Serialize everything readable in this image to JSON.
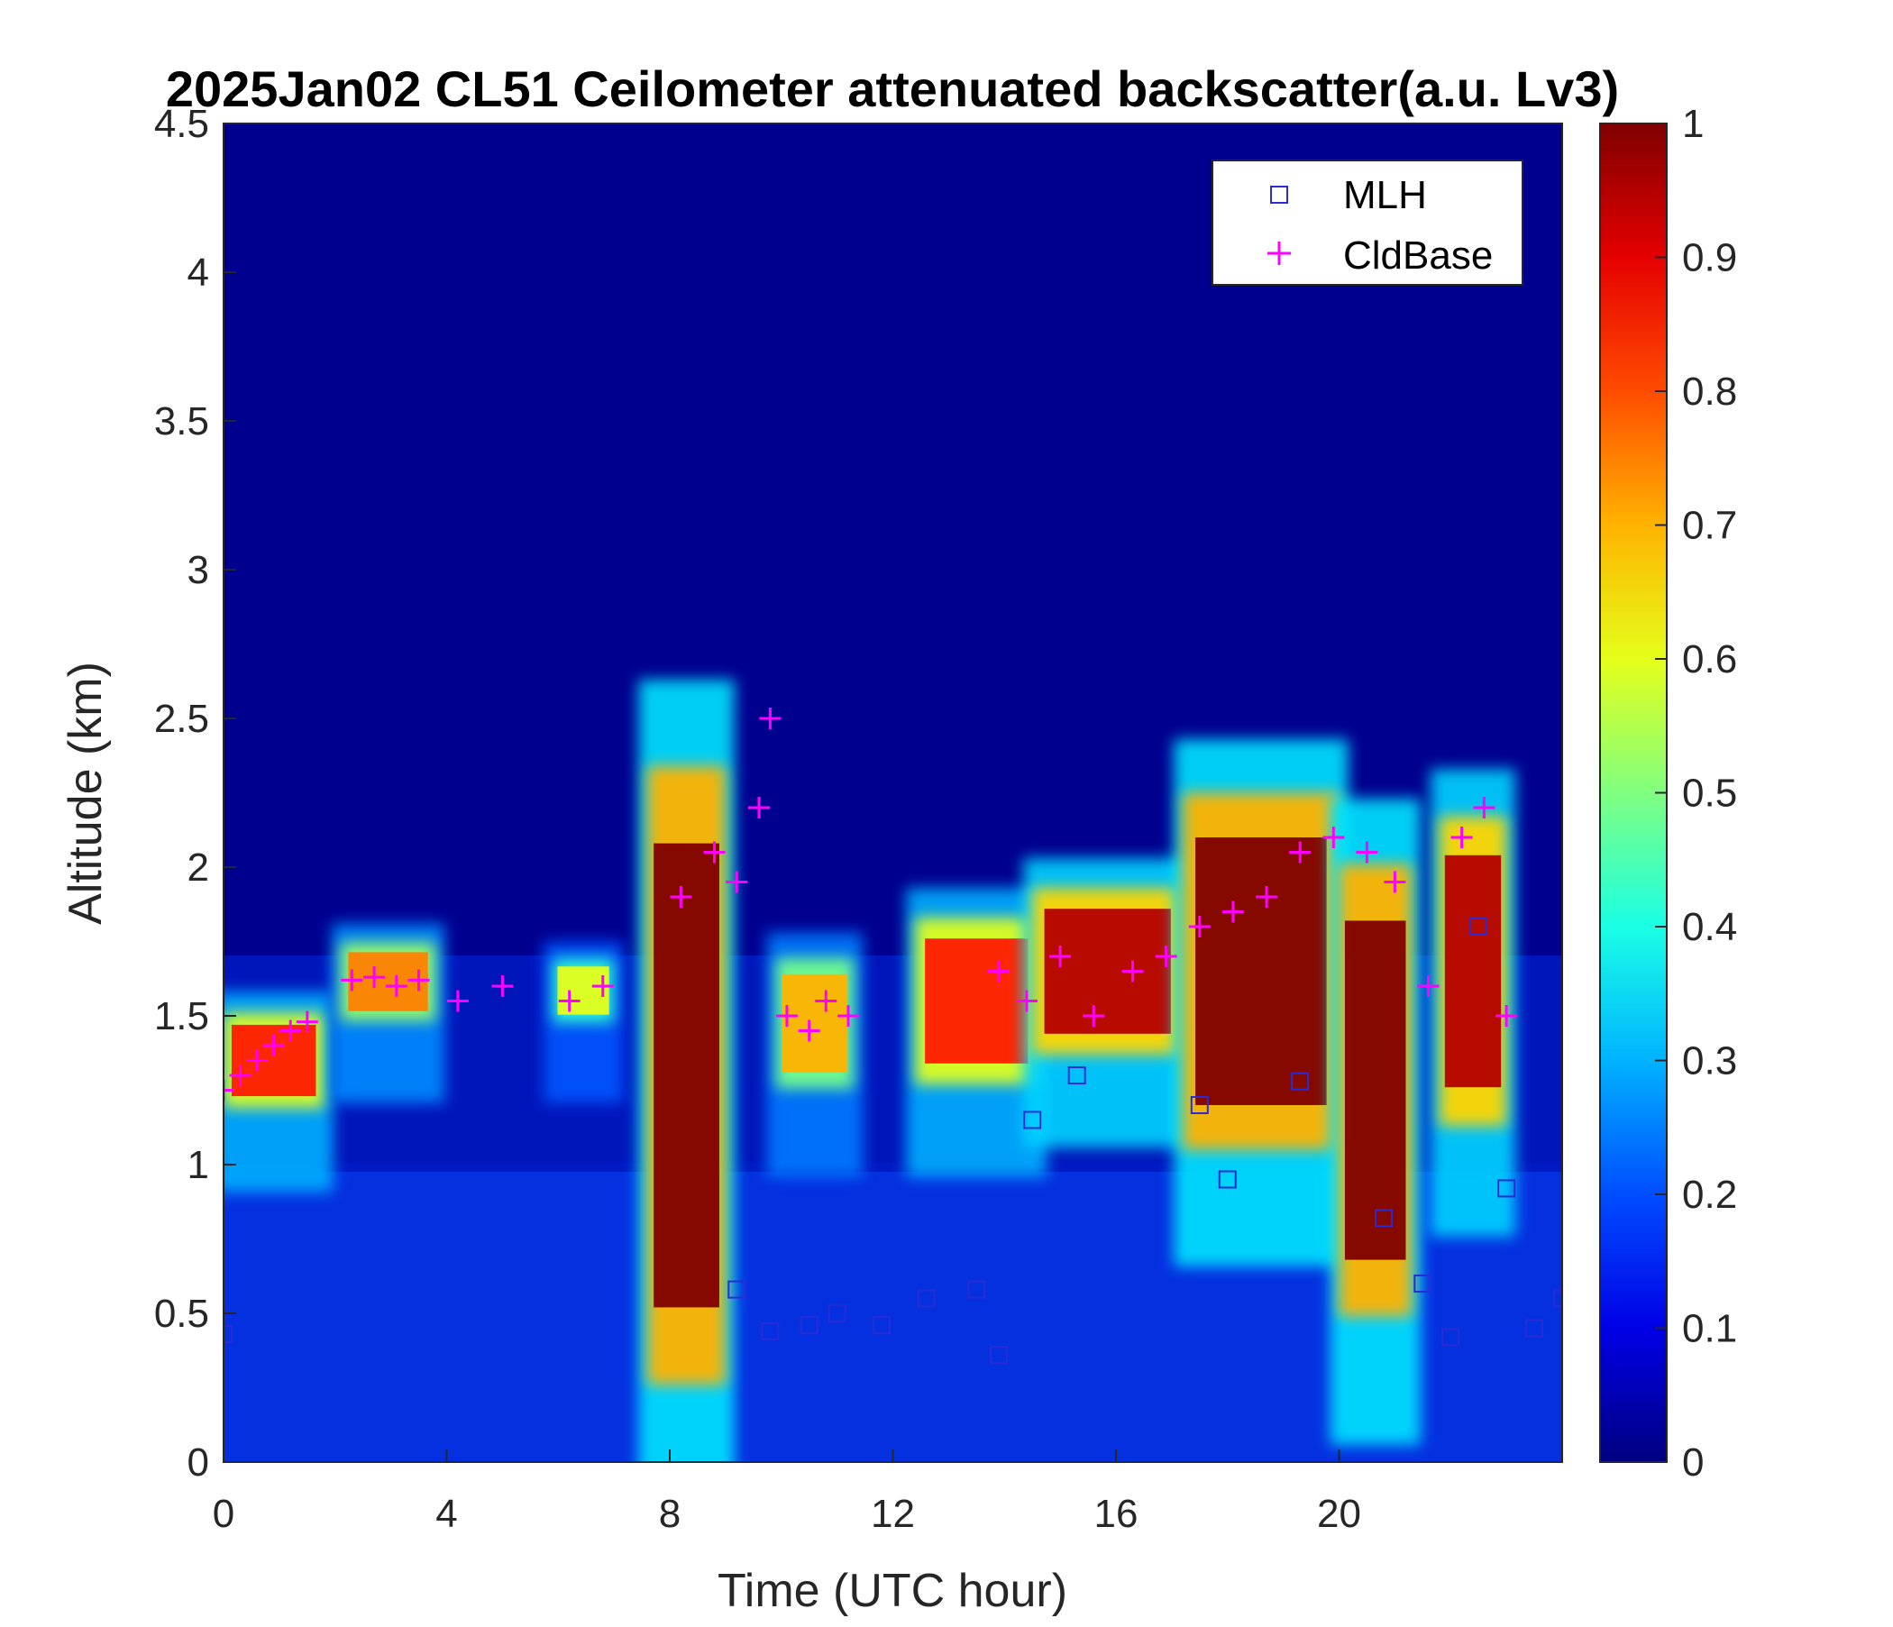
{
  "chart_data": {
    "type": "heatmap",
    "title": "2025Jan02 CL51 Ceilometer attenuated backscatter(a.u. Lv3)",
    "xlabel": "Time (UTC hour)",
    "ylabel": "Altitude (km)",
    "xlim": [
      0,
      24
    ],
    "ylim": [
      0,
      4.5
    ],
    "x_ticks": [
      "0",
      "4",
      "8",
      "12",
      "16",
      "20"
    ],
    "y_ticks": [
      "0",
      "0.5",
      "1",
      "1.5",
      "2",
      "2.5",
      "3",
      "3.5",
      "4",
      "4.5"
    ],
    "colorbar": {
      "colormap": "jet",
      "range": [
        0,
        1
      ],
      "ticks": [
        "0",
        "0.1",
        "0.2",
        "0.3",
        "0.4",
        "0.5",
        "0.6",
        "0.7",
        "0.8",
        "0.9",
        "1"
      ]
    },
    "legend": {
      "position": "top-right",
      "entries": [
        {
          "label": "MLH",
          "marker": "square",
          "color": "#2b2bd6"
        },
        {
          "label": "CldBase",
          "marker": "plus",
          "color": "#ff00ff"
        }
      ]
    },
    "cloud_layers": [
      {
        "t0": 0.0,
        "t1": 1.8,
        "base": 1.15,
        "top": 1.55,
        "intensity": 0.85
      },
      {
        "t0": 2.1,
        "t1": 3.8,
        "base": 1.45,
        "top": 1.78,
        "intensity": 0.75
      },
      {
        "t0": 5.9,
        "t1": 7.0,
        "base": 1.45,
        "top": 1.72,
        "intensity": 0.6
      },
      {
        "t0": 7.6,
        "t1": 9.0,
        "base": 0.0,
        "top": 2.6,
        "intensity": 1.0
      },
      {
        "t0": 9.9,
        "t1": 11.3,
        "base": 1.2,
        "top": 1.75,
        "intensity": 0.7
      },
      {
        "t0": 12.4,
        "t1": 14.6,
        "base": 1.2,
        "top": 1.9,
        "intensity": 0.85
      },
      {
        "t0": 14.5,
        "t1": 17.2,
        "base": 1.3,
        "top": 2.0,
        "intensity": 0.95
      },
      {
        "t0": 17.2,
        "t1": 20.0,
        "base": 0.9,
        "top": 2.4,
        "intensity": 1.0
      },
      {
        "t0": 20.0,
        "t1": 21.3,
        "base": 0.3,
        "top": 2.2,
        "intensity": 1.0
      },
      {
        "t0": 21.8,
        "t1": 23.0,
        "base": 1.0,
        "top": 2.3,
        "intensity": 0.95
      }
    ],
    "series": [
      {
        "name": "MLH",
        "x": [
          0.0,
          9.2,
          9.8,
          10.5,
          11.0,
          11.8,
          12.6,
          13.5,
          13.9,
          14.5,
          15.3,
          17.5,
          18.0,
          19.3,
          20.8,
          21.5,
          22.0,
          22.5,
          23.0,
          23.5,
          24.0
        ],
        "y": [
          0.43,
          0.58,
          0.44,
          0.46,
          0.5,
          0.46,
          0.55,
          0.58,
          0.36,
          1.15,
          1.3,
          1.2,
          0.95,
          1.28,
          0.82,
          0.6,
          0.42,
          1.8,
          0.92,
          0.45,
          0.55
        ]
      },
      {
        "name": "CldBase",
        "x": [
          0.0,
          0.3,
          0.6,
          0.9,
          1.2,
          1.5,
          2.3,
          2.7,
          3.1,
          3.5,
          4.2,
          5.0,
          6.2,
          6.8,
          8.2,
          8.8,
          9.2,
          9.6,
          9.8,
          10.1,
          10.5,
          10.8,
          11.2,
          13.9,
          14.4,
          15.0,
          15.6,
          16.3,
          16.9,
          17.5,
          18.1,
          18.7,
          19.3,
          19.9,
          20.5,
          21.0,
          21.6,
          22.2,
          22.6,
          23.0
        ],
        "y": [
          1.25,
          1.3,
          1.35,
          1.4,
          1.45,
          1.48,
          1.62,
          1.63,
          1.6,
          1.62,
          1.55,
          1.6,
          1.55,
          1.6,
          1.9,
          2.05,
          1.95,
          2.2,
          2.5,
          1.5,
          1.45,
          1.55,
          1.5,
          1.65,
          1.55,
          1.7,
          1.5,
          1.65,
          1.7,
          1.8,
          1.85,
          1.9,
          2.05,
          2.1,
          2.05,
          1.95,
          1.6,
          2.1,
          2.2,
          1.5
        ]
      }
    ]
  }
}
